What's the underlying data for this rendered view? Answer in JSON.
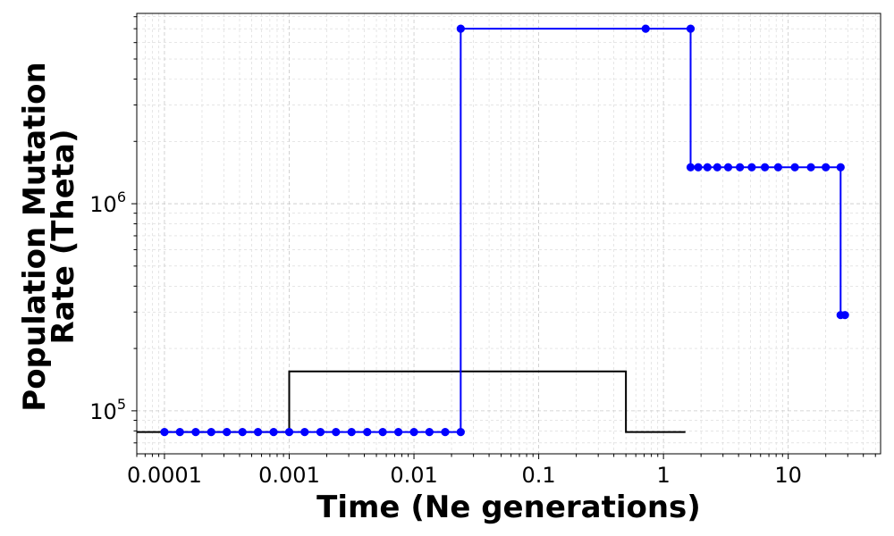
{
  "chart_data": {
    "type": "line",
    "xlabel": "Time (Ne generations)",
    "ylabel_lines": [
      "Population Mutation",
      "Rate (Theta)"
    ],
    "xscale": "log",
    "yscale": "log",
    "xlim": [
      6e-05,
      55
    ],
    "ylim": [
      62000,
      8300000
    ],
    "grid": true,
    "x_ticks": [
      {
        "value": 0.0001,
        "label": "0.0001"
      },
      {
        "value": 0.001,
        "label": "0.001"
      },
      {
        "value": 0.01,
        "label": "0.01"
      },
      {
        "value": 0.1,
        "label": "0.1"
      },
      {
        "value": 1,
        "label": "1"
      },
      {
        "value": 10,
        "label": "10"
      }
    ],
    "y_ticks": [
      {
        "value": 100000,
        "base": "10",
        "exp": "5"
      },
      {
        "value": 1000000,
        "base": "10",
        "exp": "6"
      }
    ],
    "series": [
      {
        "color": "#000000",
        "marker": "none",
        "step": true,
        "points": [
          {
            "x": 6e-05,
            "y": 79000
          },
          {
            "x": 0.001,
            "y": 79000
          },
          {
            "x": 0.001,
            "y": 155000
          },
          {
            "x": 0.5,
            "y": 155000
          },
          {
            "x": 0.5,
            "y": 79000
          },
          {
            "x": 1.5,
            "y": 79000
          }
        ]
      },
      {
        "color": "#0000ff",
        "marker": "circle",
        "step": true,
        "points": [
          {
            "x": 0.0001,
            "y": 79000
          },
          {
            "x": 0.000133,
            "y": 79000
          },
          {
            "x": 0.000178,
            "y": 79000
          },
          {
            "x": 0.000237,
            "y": 79000
          },
          {
            "x": 0.000316,
            "y": 79000
          },
          {
            "x": 0.000422,
            "y": 79000
          },
          {
            "x": 0.000562,
            "y": 79000
          },
          {
            "x": 0.00075,
            "y": 79000
          },
          {
            "x": 0.001,
            "y": 79000
          },
          {
            "x": 0.00133,
            "y": 79000
          },
          {
            "x": 0.00178,
            "y": 79000
          },
          {
            "x": 0.00237,
            "y": 79000
          },
          {
            "x": 0.00316,
            "y": 79000
          },
          {
            "x": 0.00422,
            "y": 79000
          },
          {
            "x": 0.00562,
            "y": 79000
          },
          {
            "x": 0.0075,
            "y": 79000
          },
          {
            "x": 0.01,
            "y": 79000
          },
          {
            "x": 0.0133,
            "y": 79000
          },
          {
            "x": 0.0178,
            "y": 79000
          },
          {
            "x": 0.0237,
            "y": 79000
          },
          {
            "x": 0.0237,
            "y": 7000000
          },
          {
            "x": 0.72,
            "y": 7000000
          },
          {
            "x": 1.65,
            "y": 7000000
          },
          {
            "x": 1.65,
            "y": 1500000
          },
          {
            "x": 1.9,
            "y": 1500000
          },
          {
            "x": 2.25,
            "y": 1500000
          },
          {
            "x": 2.7,
            "y": 1500000
          },
          {
            "x": 3.3,
            "y": 1500000
          },
          {
            "x": 4.1,
            "y": 1500000
          },
          {
            "x": 5.1,
            "y": 1500000
          },
          {
            "x": 6.5,
            "y": 1500000
          },
          {
            "x": 8.3,
            "y": 1500000
          },
          {
            "x": 11.3,
            "y": 1500000
          },
          {
            "x": 15.2,
            "y": 1500000
          },
          {
            "x": 20.0,
            "y": 1500000
          },
          {
            "x": 26.3,
            "y": 1500000
          },
          {
            "x": 26.3,
            "y": 290000
          },
          {
            "x": 28.5,
            "y": 290000
          }
        ]
      }
    ]
  }
}
